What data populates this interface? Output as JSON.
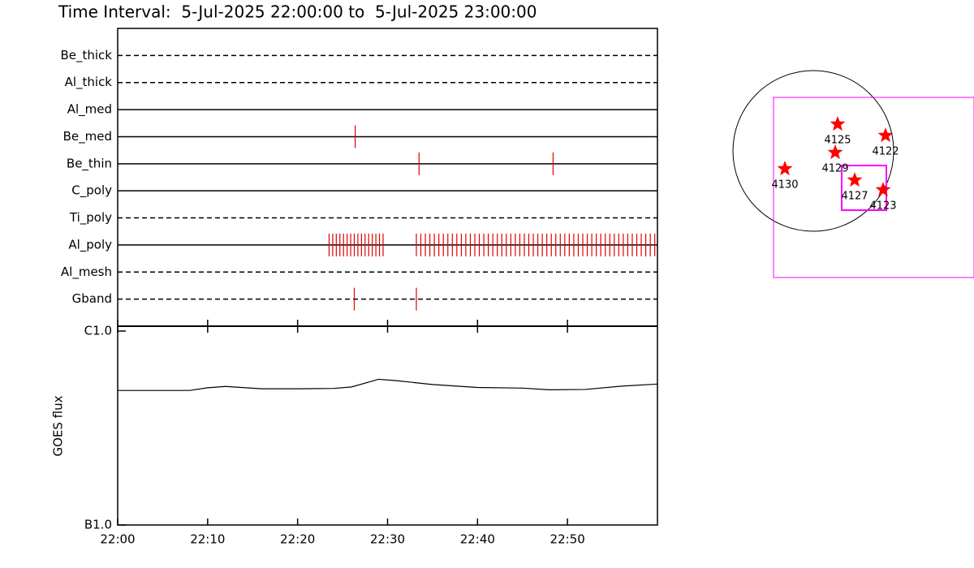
{
  "header": {
    "title": "Time Interval:  5-Jul-2025 22:00:00 to  5-Jul-2025 23:00:00"
  },
  "chart_data": [
    {
      "type": "timeline",
      "categories": [
        "Be_thick",
        "Al_thick",
        "Al_med",
        "Be_med",
        "Be_thin",
        "C_poly",
        "Ti_poly",
        "Al_poly",
        "Al_mesh",
        "Gband"
      ],
      "line_styles": [
        "dashed",
        "dashed",
        "solid",
        "solid",
        "solid",
        "solid",
        "dashed",
        "solid",
        "dashed",
        "dashed"
      ],
      "events": [
        [],
        [],
        [],
        [
          26.4
        ],
        [
          33.5,
          48.4
        ],
        [],
        [],
        [
          23.5,
          23.9,
          24.3,
          24.7,
          25.1,
          25.5,
          25.9,
          26.3,
          26.7,
          27.1,
          27.5,
          27.9,
          28.3,
          28.7,
          29.1,
          29.5,
          33.2,
          33.7,
          34.2,
          34.7,
          35.2,
          35.7,
          36.2,
          36.7,
          37.2,
          37.7,
          38.2,
          38.7,
          39.2,
          39.7,
          40.2,
          40.7,
          41.2,
          41.7,
          42.2,
          42.7,
          43.2,
          43.7,
          44.2,
          44.7,
          45.2,
          45.7,
          46.2,
          46.7,
          47.2,
          47.7,
          48.2,
          48.7,
          49.2,
          49.7,
          50.2,
          50.7,
          51.2,
          51.7,
          52.2,
          52.7,
          53.2,
          53.7,
          54.2,
          54.7,
          55.2,
          55.7,
          56.2,
          56.7,
          57.2,
          57.7,
          58.2,
          58.7,
          59.2,
          59.7
        ],
        [],
        [
          26.3,
          33.2
        ]
      ],
      "color": "#e00000",
      "xlim": [
        0,
        60
      ],
      "xticks": [
        0,
        10,
        20,
        30,
        40,
        50
      ]
    },
    {
      "type": "line",
      "ylabel": "GOES flux",
      "x": [
        0,
        8,
        10,
        12,
        16,
        20,
        24,
        26,
        29,
        31,
        35,
        40,
        45,
        48,
        52,
        56,
        60
      ],
      "values": [
        4.94e-07,
        4.94e-07,
        5.1e-07,
        5.18e-07,
        5.04e-07,
        5.04e-07,
        5.06e-07,
        5.15e-07,
        5.64e-07,
        5.55e-07,
        5.3e-07,
        5.12e-07,
        5.08e-07,
        4.98e-07,
        5e-07,
        5.2e-07,
        5.33e-07
      ],
      "color": "#000000",
      "log_scale": true,
      "ylim": [
        1e-07,
        1e-06
      ],
      "yticks": [
        {
          "value": 1e-07,
          "label": "B1.0"
        },
        {
          "value": 1e-06,
          "label": "C1.0"
        }
      ],
      "xlim": [
        0,
        60
      ],
      "xticks": [
        {
          "value": 0,
          "label": "22:00"
        },
        {
          "value": 10,
          "label": "22:10"
        },
        {
          "value": 20,
          "label": "22:20"
        },
        {
          "value": 30,
          "label": "22:30"
        },
        {
          "value": 40,
          "label": "22:40"
        },
        {
          "value": 50,
          "label": "22:50"
        }
      ]
    }
  ],
  "map": {
    "regions": [
      "4125",
      "4122",
      "4129",
      "4130",
      "4127",
      "4123"
    ],
    "color": "#ff0000"
  }
}
